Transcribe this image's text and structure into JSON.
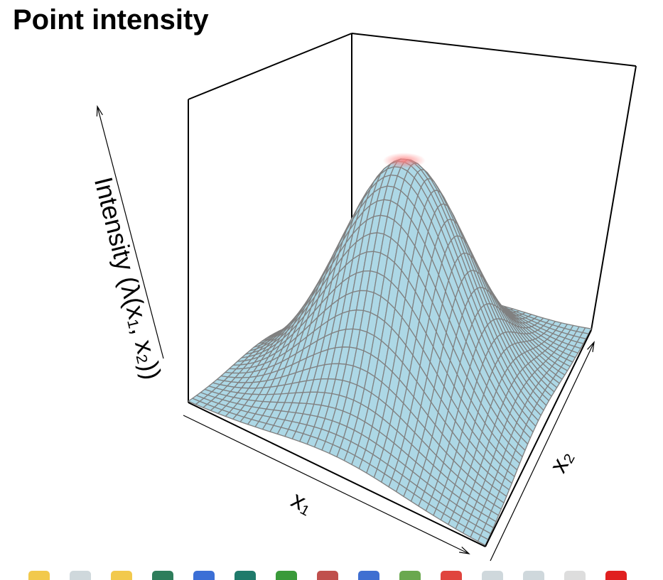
{
  "chart_data": {
    "type": "surface3d",
    "title": "Point intensity",
    "zlabel": "Intensity (λ(x₁, x₂))",
    "xlabel": "x₁",
    "ylabel": "x₂",
    "surface": {
      "function": "bivariate gaussian",
      "peak_z": 1.0,
      "sigma": 0.22,
      "grid_lines": 40,
      "fill_color": "#add8e6",
      "line_color": "#808080"
    },
    "peak_highlight": {
      "color": "#ff9999"
    },
    "axis_ticks": "none"
  },
  "taskbar": {
    "icons": [
      "folder-icon",
      "file-icon",
      "file-icon",
      "terminal-icon",
      "browser-icon",
      "spreadsheet-icon",
      "spreadsheet-icon",
      "presentation-icon",
      "globe-icon",
      "circle-icon",
      "edit-icon",
      "file-icon",
      "file-icon",
      "search-icon",
      "alert-icon"
    ]
  }
}
